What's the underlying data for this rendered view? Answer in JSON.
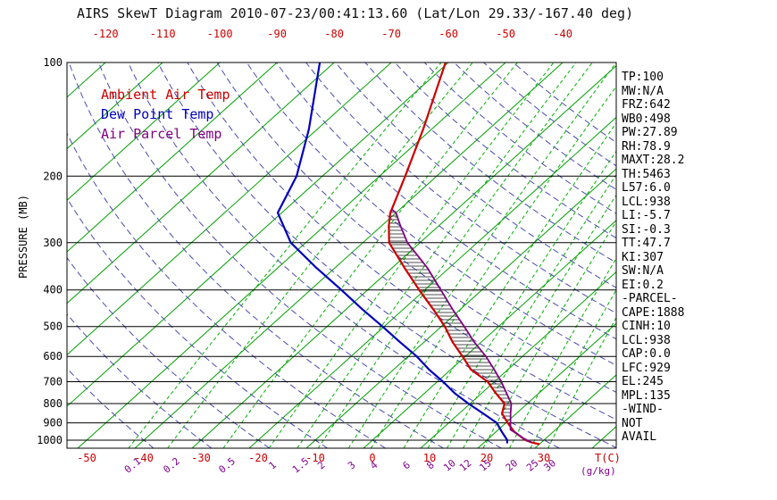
{
  "title": "AIRS SkewT Diagram 2010-07-23/00:41:13.60 (Lat/Lon 29.33/-167.40 deg)",
  "legend": [
    {
      "label": "Ambient Air Temp",
      "color": "#cc0000"
    },
    {
      "label": "Dew Point Temp",
      "color": "#0000bb"
    },
    {
      "label": "Air Parcel Temp",
      "color": "#800080"
    }
  ],
  "axes": {
    "pressure_label": "PRESSURE (MB)",
    "pressure_ticks": [
      100,
      200,
      300,
      400,
      500,
      600,
      700,
      800,
      900,
      1000
    ],
    "top_temp_ticks": [
      -120,
      -110,
      -100,
      -90,
      -80,
      -70,
      -60,
      -50,
      -40
    ],
    "bottom_temp_ticks": [
      -50,
      -40,
      -30,
      -20,
      -10,
      0,
      10,
      20,
      30
    ],
    "temp_unit": "T(C)",
    "mixing_unit": "(g/kg)"
  },
  "stats_panel": [
    "TP:100",
    "MW:N/A",
    "FRZ:642",
    "WB0:498",
    "PW:27.89",
    "RH:78.9",
    "MAXT:28.2",
    "TH:5463",
    "L57:6.0",
    "LCL:938",
    "LI:-5.7",
    "SI:-0.3",
    "TT:47.7",
    "KI:307",
    "SW:N/A",
    "EI:0.2",
    "-PARCEL-",
    "CAPE:1888",
    "CINH:10",
    "LCL:938",
    "CAP:0.0",
    "LFC:929",
    "EL:245",
    "MPL:135",
    "-WIND-",
    "NOT",
    "AVAIL"
  ],
  "chart_data": {
    "type": "line",
    "variant": "skew-t-log-p",
    "title": "AIRS SkewT Diagram",
    "xlabel": "T(C)",
    "ylabel": "PRESSURE (MB)",
    "pressure_range_mb": [
      100,
      1050
    ],
    "temp_range_at_1000mb_c": [
      -50,
      30
    ],
    "isotherms": {
      "min": -160,
      "max": 40,
      "step": 10
    },
    "dry_adiabats": {
      "min": -40,
      "max": 160,
      "step": 10
    },
    "mixing_ratios": [
      0.1,
      0.2,
      0.5,
      1,
      1.5,
      2,
      3,
      4,
      6,
      8,
      10,
      12,
      15,
      20,
      25,
      30
    ],
    "cape_region": {
      "lfc_mb": 929,
      "el_mb": 245
    },
    "series": [
      {
        "id": "ambient",
        "name": "Ambient Air Temp",
        "color": "#cc0000",
        "points": [
          [
            1025,
            30.0
          ],
          [
            1013,
            28.2
          ],
          [
            1000,
            26.8
          ],
          [
            950,
            23.2
          ],
          [
            900,
            20.3
          ],
          [
            850,
            17.5
          ],
          [
            800,
            16.0
          ],
          [
            750,
            12.4
          ],
          [
            700,
            8.8
          ],
          [
            650,
            3.5
          ],
          [
            600,
            -0.5
          ],
          [
            550,
            -5.0
          ],
          [
            500,
            -9.4
          ],
          [
            450,
            -14.8
          ],
          [
            400,
            -21.0
          ],
          [
            350,
            -27.8
          ],
          [
            300,
            -35.4
          ],
          [
            270,
            -38.8
          ],
          [
            250,
            -41.0
          ],
          [
            245,
            -41.4
          ],
          [
            200,
            -45.5
          ],
          [
            150,
            -51.5
          ],
          [
            100,
            -60.5
          ]
        ]
      },
      {
        "id": "dewpoint",
        "name": "Dew Point Temp",
        "color": "#0000bb",
        "points": [
          [
            1020,
            24.2
          ],
          [
            1000,
            23.6
          ],
          [
            950,
            21.0
          ],
          [
            900,
            18.4
          ],
          [
            850,
            14.2
          ],
          [
            800,
            9.7
          ],
          [
            750,
            5.2
          ],
          [
            700,
            1.0
          ],
          [
            650,
            -3.8
          ],
          [
            600,
            -8.5
          ],
          [
            550,
            -14.2
          ],
          [
            500,
            -20.3
          ],
          [
            450,
            -27.2
          ],
          [
            400,
            -34.6
          ],
          [
            350,
            -43.2
          ],
          [
            300,
            -52.6
          ],
          [
            250,
            -60.7
          ],
          [
            200,
            -64.5
          ],
          [
            150,
            -71.5
          ],
          [
            100,
            -82.5
          ]
        ]
      },
      {
        "id": "parcel",
        "name": "Air Parcel Temp",
        "color": "#800080",
        "points": [
          [
            1013,
            28.2
          ],
          [
            990,
            26.2
          ],
          [
            960,
            23.9
          ],
          [
            938,
            22.1
          ],
          [
            900,
            20.8
          ],
          [
            850,
            19.0
          ],
          [
            800,
            17.2
          ],
          [
            750,
            14.3
          ],
          [
            700,
            11.2
          ],
          [
            650,
            7.6
          ],
          [
            600,
            3.6
          ],
          [
            550,
            -1.2
          ],
          [
            500,
            -6.0
          ],
          [
            450,
            -11.4
          ],
          [
            400,
            -17.2
          ],
          [
            350,
            -23.8
          ],
          [
            300,
            -32.2
          ],
          [
            270,
            -36.8
          ],
          [
            250,
            -40.0
          ],
          [
            245,
            -41.4
          ]
        ]
      }
    ]
  }
}
